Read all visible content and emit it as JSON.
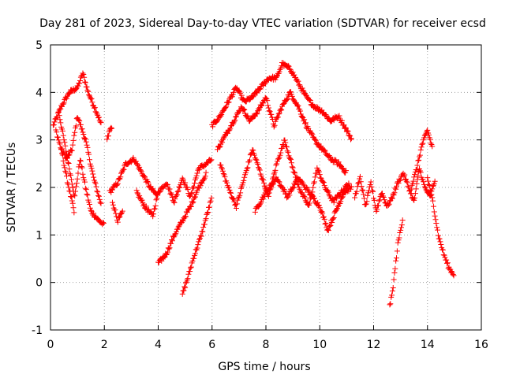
{
  "chart_data": {
    "type": "scatter",
    "title": "Day 281 of 2023, Sidereal Day-to-day VTEC variation (SDTVAR) for receiver ecsd",
    "xlabel": "GPS time / hours",
    "ylabel": "SDTVAR / TECUs",
    "xlim": [
      0,
      16
    ],
    "ylim": [
      -1,
      5
    ],
    "xticks": [
      "0",
      "2",
      "4",
      "6",
      "8",
      "10",
      "12",
      "14",
      "16"
    ],
    "yticks": [
      "-1",
      "0",
      "1",
      "2",
      "3",
      "4",
      "5"
    ],
    "grid": true,
    "marker": "+",
    "color": "#ff0000",
    "series": [
      {
        "name": "SDTVAR",
        "tracks": [
          {
            "x": [
              0.1,
              0.4,
              0.7,
              1.0,
              1.2,
              1.4,
              1.7,
              1.9
            ],
            "y": [
              3.3,
              3.7,
              4.0,
              4.1,
              4.4,
              4.0,
              3.6,
              3.3
            ]
          },
          {
            "x": [
              0.2,
              0.4,
              0.6,
              0.8,
              1.0,
              1.3,
              1.6,
              1.9
            ],
            "y": [
              3.2,
              2.8,
              2.6,
              2.8,
              3.5,
              3.0,
              2.2,
              1.6
            ]
          },
          {
            "x": [
              0.3,
              0.5,
              0.7,
              0.9,
              1.1,
              1.3,
              1.5,
              1.8,
              2.0
            ],
            "y": [
              3.6,
              3.0,
              2.4,
              1.8,
              2.6,
              2.0,
              1.5,
              1.3,
              1.2
            ]
          },
          {
            "x": [
              0.4,
              0.6,
              0.8,
              0.9
            ],
            "y": [
              2.8,
              2.2,
              1.7,
              1.4
            ]
          },
          {
            "x": [
              2.1,
              2.2,
              2.3
            ],
            "y": [
              3.0,
              3.2,
              3.3
            ]
          },
          {
            "x": [
              2.2,
              2.5,
              2.8,
              3.1,
              3.4,
              3.7,
              4.0
            ],
            "y": [
              1.9,
              2.1,
              2.5,
              2.6,
              2.3,
              2.0,
              1.8
            ]
          },
          {
            "x": [
              2.3,
              2.5,
              2.7
            ],
            "y": [
              1.7,
              1.3,
              1.5
            ]
          },
          {
            "x": [
              3.2,
              3.5,
              3.8,
              4.0,
              4.3,
              4.6,
              4.9,
              5.2,
              5.5,
              5.8,
              6.0
            ],
            "y": [
              1.9,
              1.6,
              1.4,
              1.9,
              2.1,
              1.7,
              2.2,
              1.8,
              2.4,
              2.5,
              2.6
            ]
          },
          {
            "x": [
              4.0,
              4.3,
              4.6,
              4.9,
              5.2,
              5.5,
              5.8
            ],
            "y": [
              0.4,
              0.6,
              1.0,
              1.3,
              1.6,
              2.0,
              2.3
            ]
          },
          {
            "x": [
              4.9,
              5.1,
              5.3,
              5.6,
              5.8,
              6.0
            ],
            "y": [
              -0.25,
              0.1,
              0.5,
              1.0,
              1.4,
              1.8
            ]
          },
          {
            "x": [
              6.0,
              6.3,
              6.6,
              6.9,
              7.2,
              7.5,
              7.8,
              8.1,
              8.4,
              8.6,
              8.9,
              9.2,
              9.5,
              9.8,
              10.1,
              10.4,
              10.7,
              11.0,
              11.2
            ],
            "y": [
              3.3,
              3.5,
              3.8,
              4.1,
              3.8,
              3.9,
              4.1,
              4.3,
              4.3,
              4.6,
              4.5,
              4.2,
              3.9,
              3.7,
              3.6,
              3.4,
              3.5,
              3.2,
              3.0
            ]
          },
          {
            "x": [
              6.2,
              6.5,
              6.8,
              7.1,
              7.4,
              7.7,
              8.0,
              8.3,
              8.6,
              8.9,
              9.2,
              9.5,
              9.8,
              10.1,
              10.4,
              10.7,
              11.0
            ],
            "y": [
              2.8,
              3.1,
              3.4,
              3.7,
              3.4,
              3.6,
              3.9,
              3.3,
              3.7,
              4.0,
              3.7,
              3.3,
              3.0,
              2.8,
              2.6,
              2.5,
              2.3
            ]
          },
          {
            "x": [
              6.3,
              6.6,
              6.9,
              7.2,
              7.5,
              7.8,
              8.1,
              8.4,
              8.7,
              9.0,
              9.3,
              9.6,
              9.9,
              10.2,
              10.5,
              10.8,
              11.1
            ],
            "y": [
              2.5,
              2.0,
              1.6,
              2.2,
              2.8,
              2.3,
              1.8,
              2.5,
              3.0,
              2.4,
              1.9,
              1.6,
              2.4,
              2.0,
              1.7,
              1.9,
              2.1
            ]
          },
          {
            "x": [
              7.6,
              8.0,
              8.4,
              8.8,
              9.2,
              9.6,
              10.0,
              10.3,
              10.6,
              10.9,
              11.2
            ],
            "y": [
              1.5,
              1.9,
              2.2,
              1.8,
              2.2,
              1.9,
              1.6,
              1.1,
              1.5,
              1.9,
              2.0
            ]
          },
          {
            "x": [
              11.3,
              11.5,
              11.7,
              11.9,
              12.1,
              12.3,
              12.5,
              12.7,
              12.9,
              13.1,
              13.3,
              13.5,
              13.7,
              13.9,
              14.1,
              14.3
            ],
            "y": [
              1.8,
              2.2,
              1.6,
              2.1,
              1.5,
              1.9,
              1.6,
              1.8,
              2.1,
              2.3,
              2.0,
              1.7,
              2.4,
              2.0,
              1.8,
              2.2
            ]
          },
          {
            "x": [
              12.6,
              12.7,
              12.8,
              12.9,
              13.0,
              13.1
            ],
            "y": [
              -0.5,
              -0.2,
              0.3,
              0.8,
              1.1,
              1.4
            ]
          },
          {
            "x": [
              13.4,
              13.6,
              13.8,
              14.0,
              14.2
            ],
            "y": [
              2.0,
              2.4,
              2.9,
              3.2,
              2.8
            ]
          },
          {
            "x": [
              14.0,
              14.2,
              14.4,
              14.6,
              14.8,
              15.0
            ],
            "y": [
              2.2,
              1.7,
              1.0,
              0.6,
              0.3,
              0.15
            ]
          }
        ]
      }
    ]
  }
}
